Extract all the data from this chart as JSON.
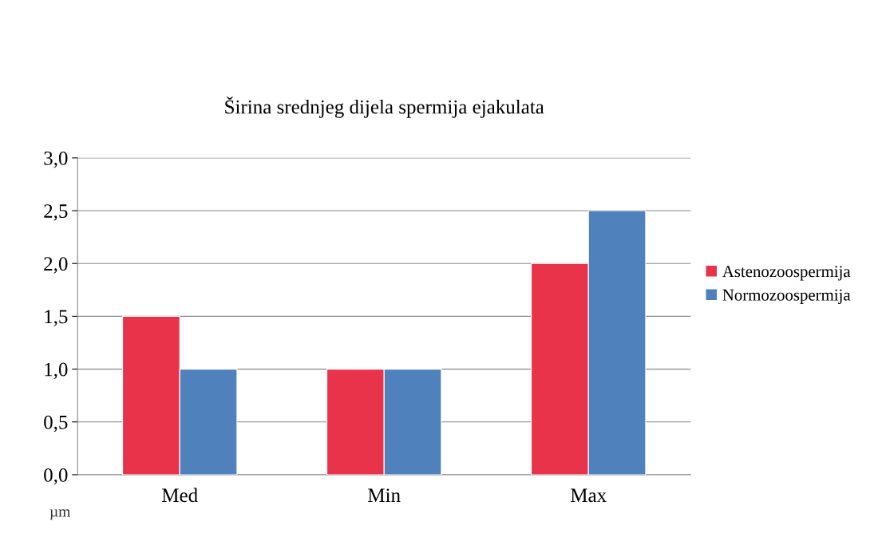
{
  "chart_data": {
    "type": "bar",
    "title": "Širina srednjeg dijela spermija ejakulata",
    "ylabel": "µm",
    "categories": [
      "Med",
      "Min",
      "Max"
    ],
    "series": [
      {
        "name": "Astenozoospermija",
        "color": "#e8334a",
        "values": [
          1.5,
          1.0,
          2.0
        ]
      },
      {
        "name": "Normozoospermija",
        "color": "#4f81bd",
        "values": [
          1.0,
          1.0,
          2.5
        ]
      }
    ],
    "ylim": [
      0,
      3
    ],
    "yticks": [
      {
        "value": 0,
        "label": "0,0"
      },
      {
        "value": 0.5,
        "label": "0,5"
      },
      {
        "value": 1,
        "label": "1,0"
      },
      {
        "value": 1.5,
        "label": "1,5"
      },
      {
        "value": 2,
        "label": "2,0"
      },
      {
        "value": 2.5,
        "label": "2,5"
      },
      {
        "value": 3,
        "label": "3,0"
      }
    ],
    "grid": "y",
    "legend": "right"
  }
}
